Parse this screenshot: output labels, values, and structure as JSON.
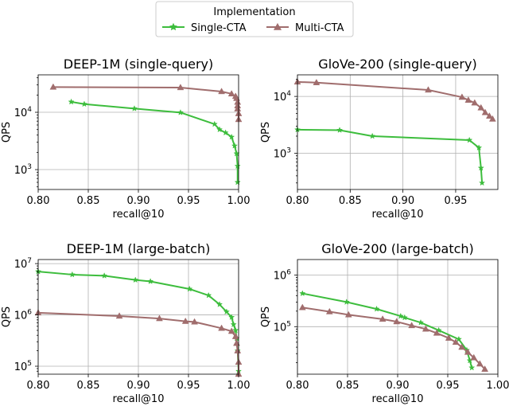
{
  "legend": {
    "title": "Implementation",
    "placement": "top-center",
    "entries": [
      "Single-CTA",
      "Multi-CTA"
    ]
  },
  "colors": {
    "Single-CTA": "#3dbd3d",
    "Multi-CTA": "#a06d6d"
  },
  "chart_data": [
    {
      "type": "line",
      "title": "DEEP-1M (single-query)",
      "xlabel": "recall@10",
      "ylabel": "QPS",
      "xlim": [
        0.8,
        1.0
      ],
      "ylim": [
        450,
        45000
      ],
      "yscale": "log",
      "grid": true,
      "xticks": [
        "0.80",
        "0.85",
        "0.90",
        "0.95",
        "1.00"
      ],
      "yticks": [
        {
          "label": "10",
          "exp": "3",
          "value": 1000
        },
        {
          "label": "10",
          "exp": "4",
          "value": 10000
        }
      ],
      "series": [
        {
          "name": "Single-CTA",
          "x": [
            0.833,
            0.846,
            0.896,
            0.942,
            0.976,
            0.981,
            0.987,
            0.993,
            0.996,
            0.998,
            0.999,
            0.999
          ],
          "y": [
            15200,
            13900,
            11600,
            9900,
            6200,
            5000,
            4400,
            3700,
            2600,
            1900,
            1150,
            600
          ]
        },
        {
          "name": "Multi-CTA",
          "x": [
            0.815,
            0.942,
            0.983,
            0.993,
            0.997,
            0.998,
            0.999,
            0.999,
            0.999,
            1.0,
            1.0
          ],
          "y": [
            27500,
            27000,
            23000,
            21000,
            19000,
            17500,
            15000,
            13000,
            11500,
            9500,
            7500
          ]
        }
      ]
    },
    {
      "type": "line",
      "title": "GloVe-200 (single-query)",
      "xlabel": "recall@10",
      "ylabel": "QPS",
      "xlim": [
        0.8,
        0.99
      ],
      "ylim": [
        230,
        24000
      ],
      "yscale": "log",
      "grid": true,
      "xticks": [
        "0.80",
        "0.85",
        "0.90",
        "0.95"
      ],
      "yticks": [
        {
          "label": "10",
          "exp": "3",
          "value": 1000
        },
        {
          "label": "10",
          "exp": "4",
          "value": 10000
        }
      ],
      "series": [
        {
          "name": "Single-CTA",
          "x": [
            0.8,
            0.84,
            0.871,
            0.963,
            0.972,
            0.974,
            0.975
          ],
          "y": [
            2600,
            2550,
            2000,
            1700,
            1250,
            550,
            300
          ]
        },
        {
          "name": "Multi-CTA",
          "x": [
            0.8,
            0.818,
            0.924,
            0.956,
            0.962,
            0.968,
            0.974,
            0.978,
            0.982,
            0.985
          ],
          "y": [
            18000,
            17500,
            13000,
            9700,
            8600,
            7700,
            6300,
            5200,
            4500,
            4000
          ]
        }
      ]
    },
    {
      "type": "line",
      "title": "DEEP-1M (large-batch)",
      "xlabel": "recall@10",
      "ylabel": "QPS",
      "xlim": [
        0.8,
        1.0
      ],
      "ylim": [
        70000,
        12000000
      ],
      "yscale": "log",
      "grid": true,
      "xticks": [
        "0.80",
        "0.85",
        "0.90",
        "0.95",
        "1.00"
      ],
      "yticks": [
        {
          "label": "10",
          "exp": "5",
          "value": 100000
        },
        {
          "label": "10",
          "exp": "6",
          "value": 1000000
        },
        {
          "label": "10",
          "exp": "7",
          "value": 10000000
        }
      ],
      "series": [
        {
          "name": "Single-CTA",
          "x": [
            0.8,
            0.834,
            0.866,
            0.897,
            0.912,
            0.951,
            0.97,
            0.981,
            0.988,
            0.993,
            0.995,
            0.997,
            0.998,
            0.999,
            1.0
          ],
          "y": [
            7000000,
            6100000,
            5800000,
            4800000,
            4500000,
            3200000,
            2400000,
            1600000,
            1150000,
            900000,
            650000,
            500000,
            350000,
            200000,
            80000
          ]
        },
        {
          "name": "Multi-CTA",
          "x": [
            0.8,
            0.881,
            0.921,
            0.947,
            0.956,
            0.983,
            0.993,
            0.997,
            0.998,
            0.999,
            1.0,
            1.0
          ],
          "y": [
            1100000,
            950000,
            850000,
            750000,
            730000,
            550000,
            480000,
            380000,
            280000,
            200000,
            120000,
            70000
          ]
        }
      ]
    },
    {
      "type": "line",
      "title": "GloVe-200 (large-batch)",
      "xlabel": "recall@10",
      "ylabel": "QPS",
      "xlim": [
        0.8,
        1.0
      ],
      "ylim": [
        12000,
        2000000
      ],
      "yscale": "log",
      "grid": true,
      "xticks": [
        "0.80",
        "0.85",
        "0.90",
        "0.95",
        "1.00"
      ],
      "yticks": [
        {
          "label": "10",
          "exp": "5",
          "value": 100000
        },
        {
          "label": "10",
          "exp": "6",
          "value": 1000000
        }
      ],
      "series": [
        {
          "name": "Single-CTA",
          "x": [
            0.805,
            0.849,
            0.879,
            0.903,
            0.907,
            0.923,
            0.941,
            0.961,
            0.969,
            0.972,
            0.974
          ],
          "y": [
            440000,
            300000,
            220000,
            160000,
            150000,
            120000,
            85000,
            57000,
            35000,
            22000,
            16000
          ]
        },
        {
          "name": "Multi-CTA",
          "x": [
            0.805,
            0.832,
            0.851,
            0.885,
            0.899,
            0.914,
            0.928,
            0.939,
            0.951,
            0.958,
            0.964,
            0.97,
            0.976,
            0.982,
            0.987
          ],
          "y": [
            235000,
            195000,
            170000,
            140000,
            125000,
            105000,
            90000,
            75000,
            60000,
            50000,
            40000,
            32000,
            25000,
            19000,
            15000
          ]
        }
      ]
    }
  ]
}
